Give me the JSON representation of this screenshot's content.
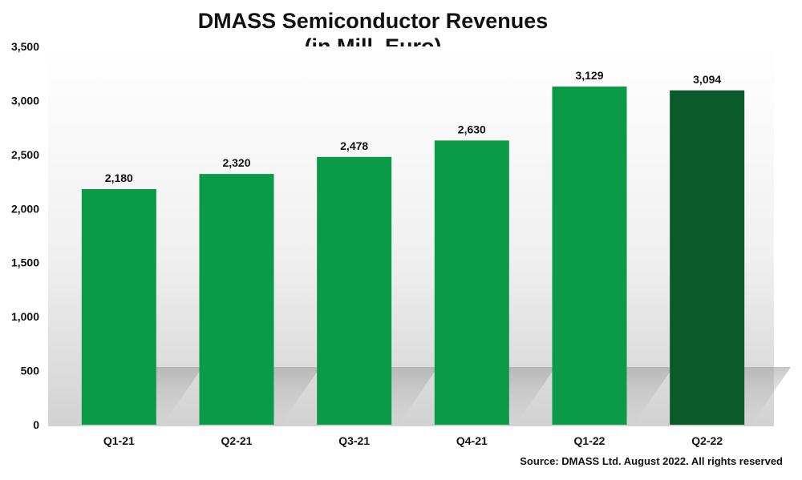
{
  "title_line1": "DMASS Semiconductor Revenues",
  "title_line2": "(in Mill. Euro)",
  "source": "Source: DMASS Ltd. August 2022. All rights reserved",
  "colors": {
    "bar": "#0a9a48",
    "bar_highlight": "#0b5a2a",
    "background_top": "#ffffff",
    "background_bottom": "#d4d4d4"
  },
  "chart_data": {
    "type": "bar",
    "title": "DMASS Semiconductor Revenues (in Mill. Euro)",
    "categories": [
      "Q1-21",
      "Q2-21",
      "Q3-21",
      "Q4-21",
      "Q1-22",
      "Q2-22"
    ],
    "values": [
      2180,
      2320,
      2478,
      2630,
      3129,
      3094
    ],
    "value_labels": [
      "2,180",
      "2,320",
      "2,478",
      "2,630",
      "3,129",
      "3,094"
    ],
    "highlight_index": 5,
    "ylim": [
      0,
      3500
    ],
    "yticks": [
      0,
      500,
      1000,
      1500,
      2000,
      2500,
      3000,
      3500
    ],
    "ytick_labels": [
      "0",
      "500",
      "1,000",
      "1,500",
      "2,000",
      "2,500",
      "3,000",
      "3,500"
    ],
    "grid": false,
    "legend": "none",
    "xlabel": "",
    "ylabel": ""
  }
}
